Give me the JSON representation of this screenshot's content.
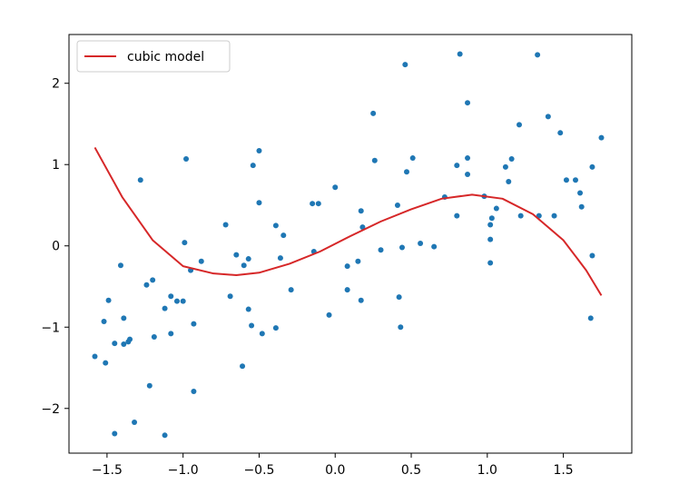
{
  "chart_data": {
    "type": "scatter",
    "title": "",
    "xlabel": "",
    "ylabel": "",
    "xlim": [
      -1.75,
      1.95
    ],
    "ylim": [
      -2.55,
      2.6
    ],
    "grid": false,
    "legend_position": "top-left",
    "x_ticks": [
      {
        "value": -1.5,
        "label": "−1.5"
      },
      {
        "value": -1.0,
        "label": "−1.0"
      },
      {
        "value": -0.5,
        "label": "−0.5"
      },
      {
        "value": 0.0,
        "label": "0.0"
      },
      {
        "value": 0.5,
        "label": "0.5"
      },
      {
        "value": 1.0,
        "label": "1.0"
      },
      {
        "value": 1.5,
        "label": "1.5"
      }
    ],
    "y_ticks": [
      {
        "value": -2,
        "label": "−2"
      },
      {
        "value": -1,
        "label": "−1"
      },
      {
        "value": 0,
        "label": "0"
      },
      {
        "value": 1,
        "label": "1"
      },
      {
        "value": 2,
        "label": "2"
      }
    ],
    "series": [
      {
        "kind": "scatter",
        "color": "#1f77b4",
        "points": [
          [
            -1.58,
            -1.36
          ],
          [
            -1.52,
            -0.93
          ],
          [
            -1.51,
            -1.44
          ],
          [
            -1.49,
            -0.67
          ],
          [
            -1.45,
            -1.2
          ],
          [
            -1.45,
            -2.31
          ],
          [
            -1.41,
            -0.24
          ],
          [
            -1.39,
            -1.21
          ],
          [
            -1.39,
            -0.89
          ],
          [
            -1.36,
            -1.18
          ],
          [
            -1.35,
            -1.15
          ],
          [
            -1.32,
            -2.17
          ],
          [
            -1.28,
            0.81
          ],
          [
            -1.24,
            -0.48
          ],
          [
            -1.22,
            -1.72
          ],
          [
            -1.2,
            -0.42
          ],
          [
            -1.19,
            -1.12
          ],
          [
            -1.12,
            -2.33
          ],
          [
            -1.12,
            -0.77
          ],
          [
            -1.08,
            -0.62
          ],
          [
            -1.08,
            -1.08
          ],
          [
            -1.04,
            -0.68
          ],
          [
            -1.0,
            -0.68
          ],
          [
            -0.99,
            0.04
          ],
          [
            -0.98,
            1.07
          ],
          [
            -0.95,
            -0.3
          ],
          [
            -0.93,
            -1.79
          ],
          [
            -0.93,
            -0.96
          ],
          [
            -0.88,
            -0.19
          ],
          [
            -0.72,
            0.26
          ],
          [
            -0.69,
            -0.62
          ],
          [
            -0.65,
            -0.11
          ],
          [
            -0.61,
            -1.48
          ],
          [
            -0.6,
            -0.24
          ],
          [
            -0.57,
            -0.16
          ],
          [
            -0.57,
            -0.78
          ],
          [
            -0.55,
            -0.98
          ],
          [
            -0.54,
            0.99
          ],
          [
            -0.5,
            1.17
          ],
          [
            -0.5,
            0.53
          ],
          [
            -0.48,
            -1.08
          ],
          [
            -0.39,
            -1.01
          ],
          [
            -0.39,
            0.25
          ],
          [
            -0.36,
            -0.15
          ],
          [
            -0.34,
            0.13
          ],
          [
            -0.29,
            -0.54
          ],
          [
            -0.15,
            0.52
          ],
          [
            -0.14,
            -0.07
          ],
          [
            -0.11,
            0.52
          ],
          [
            -0.04,
            -0.85
          ],
          [
            0.0,
            0.72
          ],
          [
            0.08,
            -0.25
          ],
          [
            0.08,
            -0.54
          ],
          [
            0.15,
            -0.19
          ],
          [
            0.17,
            -0.67
          ],
          [
            0.17,
            0.43
          ],
          [
            0.18,
            0.23
          ],
          [
            0.25,
            1.63
          ],
          [
            0.26,
            1.05
          ],
          [
            0.3,
            -0.05
          ],
          [
            0.41,
            0.5
          ],
          [
            0.42,
            -0.63
          ],
          [
            0.43,
            -1.0
          ],
          [
            0.44,
            -0.02
          ],
          [
            0.46,
            2.23
          ],
          [
            0.47,
            0.91
          ],
          [
            0.51,
            1.08
          ],
          [
            0.56,
            0.03
          ],
          [
            0.65,
            -0.01
          ],
          [
            0.72,
            0.6
          ],
          [
            0.8,
            0.99
          ],
          [
            0.8,
            0.37
          ],
          [
            0.82,
            2.36
          ],
          [
            0.87,
            1.08
          ],
          [
            0.87,
            1.76
          ],
          [
            0.87,
            0.88
          ],
          [
            0.98,
            0.61
          ],
          [
            1.02,
            0.08
          ],
          [
            1.02,
            -0.21
          ],
          [
            1.02,
            0.26
          ],
          [
            1.03,
            0.34
          ],
          [
            1.06,
            0.46
          ],
          [
            1.12,
            0.97
          ],
          [
            1.14,
            0.79
          ],
          [
            1.16,
            1.07
          ],
          [
            1.21,
            1.49
          ],
          [
            1.22,
            0.37
          ],
          [
            1.33,
            2.35
          ],
          [
            1.34,
            0.37
          ],
          [
            1.4,
            1.59
          ],
          [
            1.44,
            0.37
          ],
          [
            1.48,
            1.39
          ],
          [
            1.52,
            0.81
          ],
          [
            1.58,
            0.81
          ],
          [
            1.61,
            0.65
          ],
          [
            1.62,
            0.48
          ],
          [
            1.68,
            -0.89
          ],
          [
            1.69,
            -0.12
          ],
          [
            1.69,
            0.97
          ],
          [
            1.75,
            1.33
          ]
        ]
      },
      {
        "kind": "line",
        "name": "cubic model",
        "color": "#d62728",
        "x_range": [
          -1.58,
          1.75
        ],
        "curve_points": [
          [
            -1.58,
            1.21
          ],
          [
            -1.4,
            0.6
          ],
          [
            -1.2,
            0.07
          ],
          [
            -1.0,
            -0.25
          ],
          [
            -0.8,
            -0.34
          ],
          [
            -0.65,
            -0.36
          ],
          [
            -0.5,
            -0.33
          ],
          [
            -0.3,
            -0.22
          ],
          [
            -0.1,
            -0.07
          ],
          [
            0.1,
            0.12
          ],
          [
            0.3,
            0.3
          ],
          [
            0.5,
            0.45
          ],
          [
            0.7,
            0.58
          ],
          [
            0.9,
            0.63
          ],
          [
            1.1,
            0.58
          ],
          [
            1.3,
            0.39
          ],
          [
            1.5,
            0.07
          ],
          [
            1.65,
            -0.3
          ],
          [
            1.75,
            -0.61
          ]
        ]
      }
    ]
  }
}
